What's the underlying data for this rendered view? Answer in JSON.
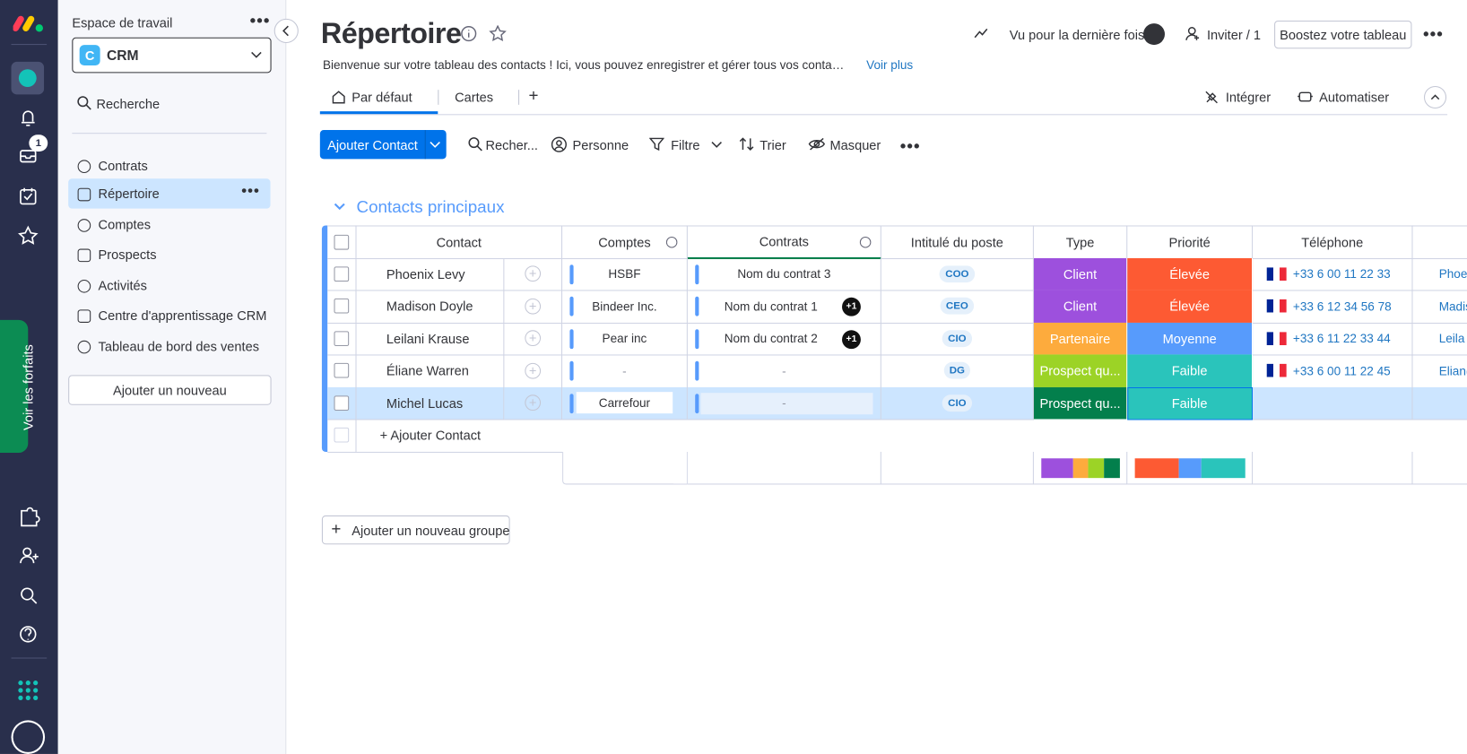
{
  "left_rail": {
    "badge": "1",
    "plans": "Voir les forfaits"
  },
  "sidebar": {
    "workspace_label": "Espace de travail",
    "workspace_initial": "C",
    "workspace": "CRM",
    "search": "Recherche",
    "items": [
      "Contrats",
      "Répertoire",
      "Comptes",
      "Prospects",
      "Activités",
      "Centre d'apprentissage CRM",
      "Tableau de bord des ventes"
    ],
    "active": 1,
    "add": "Ajouter un nouveau"
  },
  "header": {
    "title": "Répertoire",
    "description": "Bienvenue sur votre tableau des contacts ! Ici, vous pouvez enregistrer et gérer tous vos conta…",
    "see_more": "Voir plus",
    "last_seen": "Vu pour la dernière fois",
    "invite": "Inviter / 1",
    "boost": "Boostez votre tableau"
  },
  "tabs": {
    "items": [
      "Par défaut",
      "Cartes"
    ],
    "integrate": "Intégrer",
    "automate": "Automatiser"
  },
  "toolbar": {
    "add": "Ajouter Contact",
    "search": "Recher...",
    "person": "Personne",
    "filter": "Filtre",
    "sort": "Trier",
    "hide": "Masquer"
  },
  "group": {
    "title": "Contacts principaux",
    "columns": [
      "Contact",
      "Comptes",
      "Contrats",
      "Intitulé du poste",
      "Type",
      "Priorité",
      "Téléphone"
    ],
    "rows": [
      {
        "contact": "Phoenix Levy",
        "account": "HSBF",
        "contract": "Nom du contrat 3",
        "extra": null,
        "job": "COO",
        "type": "Client",
        "type_color": "#9d50dd",
        "priority": "Élevée",
        "priority_color": "#fd5a33",
        "phone": "+33 6 00 11 22 33",
        "email": "Phoen"
      },
      {
        "contact": "Madison Doyle",
        "account": "Bindeer Inc.",
        "contract": "Nom du contrat 1",
        "extra": "+1",
        "job": "CEO",
        "type": "Client",
        "type_color": "#9d50dd",
        "priority": "Élevée",
        "priority_color": "#fd5a33",
        "phone": "+33 6 12 34 56 78",
        "email": "Madis"
      },
      {
        "contact": "Leilani Krause",
        "account": "Pear inc",
        "contract": "Nom du contrat 2",
        "extra": "+1",
        "job": "CIO",
        "type": "Partenaire",
        "type_color": "#fdab3d",
        "priority": "Moyenne",
        "priority_color": "#579bfc",
        "phone": "+33 6 11 22 33 44",
        "email": "Leila"
      },
      {
        "contact": "Éliane Warren",
        "account": "-",
        "contract": "-",
        "extra": null,
        "job": "DG",
        "type": "Prospect qu...",
        "type_color": "#9cd326",
        "priority": "Faible",
        "priority_color": "#2ac4bb",
        "phone": "+33 6 00 11 22 45",
        "email": "Elian("
      },
      {
        "contact": "Michel Lucas",
        "account": "Carrefour",
        "contract": "-",
        "extra": null,
        "job": "CIO",
        "type": "Prospect qu...",
        "type_color": "#037f4c",
        "priority": "Faible",
        "priority_color": "#2ac4bb",
        "phone": null,
        "email": null
      }
    ],
    "add_row": "+ Ajouter Contact"
  },
  "add_group": "Ajouter un nouveau groupe"
}
